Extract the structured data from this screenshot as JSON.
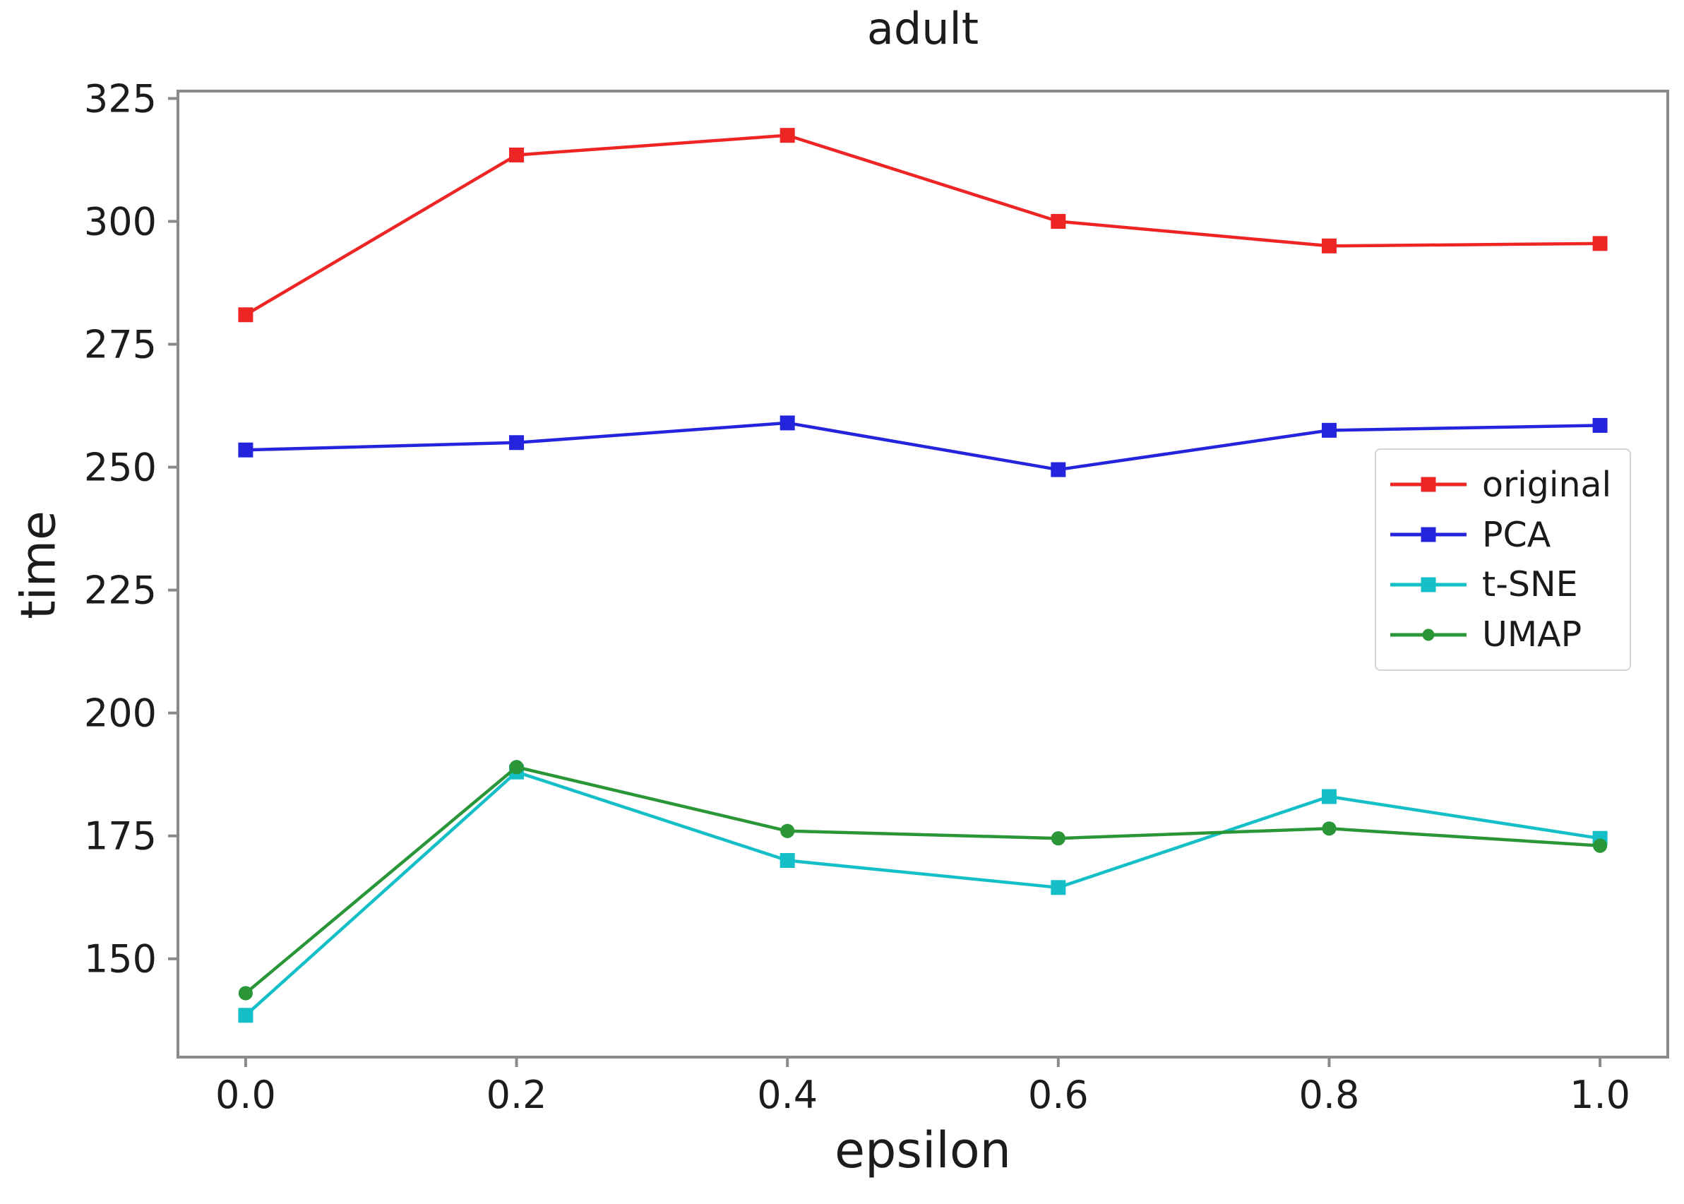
{
  "title": "adult",
  "chart_data": {
    "type": "line",
    "title": "adult",
    "xlabel": "epsilon",
    "ylabel": "time",
    "x": [
      0.0,
      0.2,
      0.4,
      0.6,
      0.8,
      1.0
    ],
    "series": [
      {
        "name": "original",
        "label": "original",
        "color": "#ee2525",
        "marker": "square",
        "values": [
          281,
          313.5,
          317.5,
          300,
          295,
          295.5
        ]
      },
      {
        "name": "PCA",
        "label": "PCA",
        "color": "#2424dd",
        "marker": "square",
        "values": [
          253.5,
          255,
          259,
          249.5,
          257.5,
          258.5
        ]
      },
      {
        "name": "t-SNE",
        "label": "t-SNE",
        "color": "#15bfc7",
        "marker": "square",
        "values": [
          138.5,
          188,
          170,
          164.5,
          183,
          174.5
        ]
      },
      {
        "name": "UMAP",
        "label": "UMAP",
        "color": "#2a9638",
        "marker": "circle",
        "values": [
          143,
          189,
          176,
          174.5,
          176.5,
          173
        ]
      }
    ],
    "xlim": [
      -0.05,
      1.05
    ],
    "ylim": [
      130,
      326.5
    ],
    "xticks": [
      0.0,
      0.2,
      0.4,
      0.6,
      0.8,
      1.0
    ],
    "xtick_labels": [
      "0.0",
      "0.2",
      "0.4",
      "0.6",
      "0.8",
      "1.0"
    ],
    "yticks": [
      150,
      175,
      200,
      225,
      250,
      275,
      300,
      325
    ],
    "grid": false,
    "legend_position": "center right"
  },
  "style_colors": {
    "spine": "#8a8a8a",
    "tick_text": "#1c1c1c"
  }
}
